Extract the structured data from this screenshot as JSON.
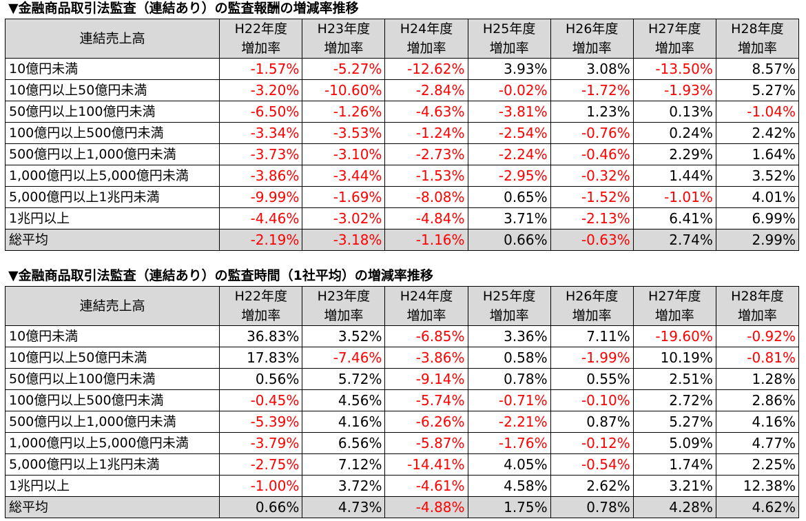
{
  "colors": {
    "negative": "#ff0000",
    "header_bg": "#d9d9d9"
  },
  "tables": [
    {
      "title": "▼金融商品取引法監査（連結あり）の監査報酬の増減率推移",
      "row_header": "連結売上高",
      "years": [
        "H22年度",
        "H23年度",
        "H24年度",
        "H25年度",
        "H26年度",
        "H27年度",
        "H28年度"
      ],
      "metric": "増加率",
      "rows": [
        {
          "label": "10億円未満",
          "values": [
            "-1.57%",
            "-5.27%",
            "-12.62%",
            "3.93%",
            "3.08%",
            "-13.50%",
            "8.57%"
          ]
        },
        {
          "label": "10億円以上50億円未満",
          "values": [
            "-3.20%",
            "-10.60%",
            "-2.84%",
            "-0.02%",
            "-1.72%",
            "-1.93%",
            "5.27%"
          ]
        },
        {
          "label": "50億円以上100億円未満",
          "values": [
            "-6.50%",
            "-1.26%",
            "-4.63%",
            "-3.81%",
            "1.23%",
            "0.13%",
            "-1.04%"
          ]
        },
        {
          "label": "100億円以上500億円未満",
          "values": [
            "-3.34%",
            "-3.53%",
            "-1.24%",
            "-2.54%",
            "-0.76%",
            "0.24%",
            "2.42%"
          ]
        },
        {
          "label": "500億円以上1,000億円未満",
          "values": [
            "-3.73%",
            "-3.10%",
            "-2.73%",
            "-2.24%",
            "-0.46%",
            "2.29%",
            "1.64%"
          ]
        },
        {
          "label": "1,000億円以上5,000億円未満",
          "values": [
            "-3.86%",
            "-3.44%",
            "-1.53%",
            "-2.95%",
            "-0.32%",
            "1.44%",
            "3.52%"
          ]
        },
        {
          "label": "5,000億円以上1兆円未満",
          "values": [
            "-9.99%",
            "-1.69%",
            "-8.08%",
            "0.65%",
            "-1.52%",
            "-1.01%",
            "4.01%"
          ]
        },
        {
          "label": "1兆円以上",
          "values": [
            "-4.46%",
            "-3.02%",
            "-4.84%",
            "3.71%",
            "-2.13%",
            "6.41%",
            "6.99%"
          ]
        }
      ],
      "average": {
        "label": "総平均",
        "values": [
          "-2.19%",
          "-3.18%",
          "-1.16%",
          "0.66%",
          "-0.63%",
          "2.74%",
          "2.99%"
        ]
      }
    },
    {
      "title": "▼金融商品取引法監査（連結あり）の監査時間（1社平均）の増減率推移",
      "row_header": "連結売上高",
      "years": [
        "H22年度",
        "H23年度",
        "H24年度",
        "H25年度",
        "H26年度",
        "H27年度",
        "H28年度"
      ],
      "metric": "増加率",
      "rows": [
        {
          "label": "10億円未満",
          "values": [
            "36.83%",
            "3.52%",
            "-6.85%",
            "3.36%",
            "7.11%",
            "-19.60%",
            "-0.92%"
          ]
        },
        {
          "label": "10億円以上50億円未満",
          "values": [
            "17.83%",
            "-7.46%",
            "-3.86%",
            "0.58%",
            "-1.99%",
            "10.19%",
            "-0.81%"
          ]
        },
        {
          "label": "50億円以上100億円未満",
          "values": [
            "0.56%",
            "5.72%",
            "-9.14%",
            "0.78%",
            "0.55%",
            "2.51%",
            "1.28%"
          ]
        },
        {
          "label": "100億円以上500億円未満",
          "values": [
            "-0.45%",
            "4.56%",
            "-5.74%",
            "-0.71%",
            "-0.10%",
            "2.72%",
            "2.86%"
          ]
        },
        {
          "label": "500億円以上1,000億円未満",
          "values": [
            "-5.39%",
            "4.16%",
            "-6.26%",
            "-2.21%",
            "0.87%",
            "5.27%",
            "4.16%"
          ]
        },
        {
          "label": "1,000億円以上5,000億円未満",
          "values": [
            "-3.79%",
            "6.56%",
            "-5.87%",
            "-1.76%",
            "-0.12%",
            "5.09%",
            "4.77%"
          ]
        },
        {
          "label": "5,000億円以上1兆円未満",
          "values": [
            "-2.75%",
            "7.12%",
            "-14.41%",
            "4.05%",
            "-0.54%",
            "1.74%",
            "2.25%"
          ]
        },
        {
          "label": "1兆円以上",
          "values": [
            "-1.00%",
            "3.72%",
            "-4.61%",
            "4.58%",
            "2.62%",
            "3.21%",
            "12.38%"
          ]
        }
      ],
      "average": {
        "label": "総平均",
        "values": [
          "0.66%",
          "4.73%",
          "-4.88%",
          "1.75%",
          "0.78%",
          "4.28%",
          "4.62%"
        ]
      }
    }
  ]
}
